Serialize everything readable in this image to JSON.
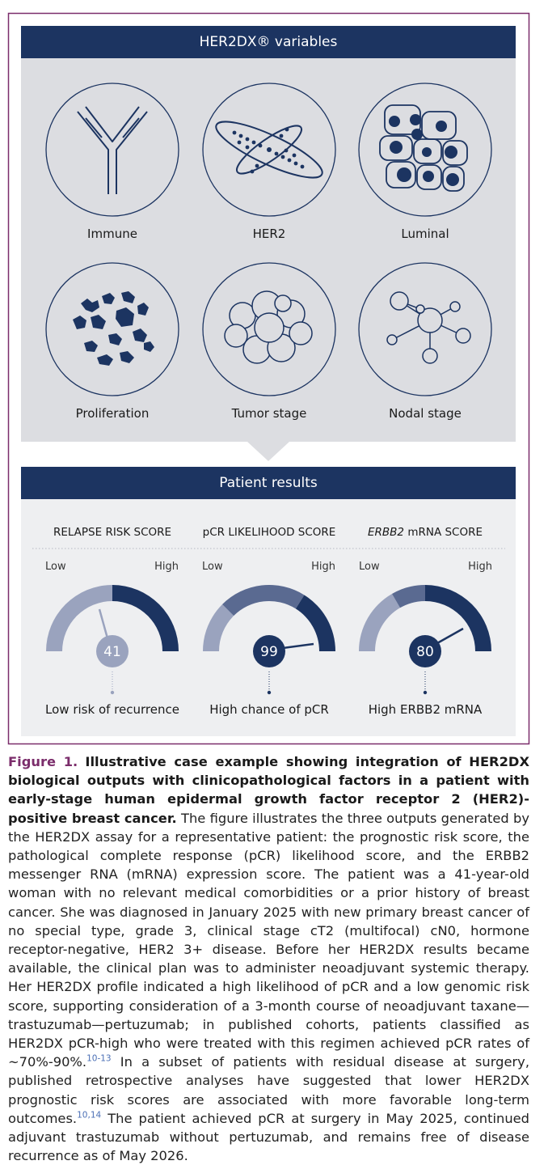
{
  "header": {
    "title": "HER2DX® variables"
  },
  "variables": [
    {
      "label": "Immune"
    },
    {
      "label": "HER2"
    },
    {
      "label": "Luminal"
    },
    {
      "label": "Proliferation"
    },
    {
      "label": "Tumor stage"
    },
    {
      "label": "Nodal stage"
    }
  ],
  "results": {
    "title": "Patient results",
    "scores": [
      {
        "name": "RELAPSE RISK SCORE",
        "low": "Low",
        "high": "High",
        "score": "41",
        "interpretation": "Low risk of recurrence"
      },
      {
        "name": "pCR LIKELIHOOD SCORE",
        "low": "Low",
        "high": "High",
        "score": "99",
        "interpretation": "High chance of pCR"
      },
      {
        "name_italic": "ERBB2",
        "name": "mRNA SCORE",
        "low": "Low",
        "high": "High",
        "score": "80",
        "interpretation": "High ERBB2 mRNA"
      }
    ]
  },
  "caption": {
    "label": "Figure 1.",
    "title": "Illustrative case example showing integration of HER2DX biological outputs with clinicopathological factors in a patient with early-stage human epidermal growth factor receptor 2 (HER2)-positive breast cancer.",
    "text_1": "The figure illustrates the three outputs generated by the HER2DX assay for a representative patient: the prognostic risk score, the pathological complete response (pCR) likelihood score, and the ERBB2 messenger RNA (mRNA) expression score. The patient was a 41-year-old woman with no relevant medical comorbidities or a prior history of breast cancer. She was diagnosed in January 2025 with new primary breast cancer of no special type, grade 3, clinical stage cT2 (multifocal) cN0, hormone receptor-negative, HER2 3+ disease. Before her HER2DX results became available, the clinical plan was to administer neoadjuvant systemic therapy. Her HER2DX profile indicated a high likelihood of pCR and a low genomic risk score, supporting consideration of a 3-month course of neoadjuvant taxane—trastuzumab—pertuzumab; in published cohorts, patients classified as HER2DX pCR-high who were treated with this regimen achieved pCR rates of ∼70%-90%.",
    "ref_1": "10-13",
    "text_2": "In a subset of patients with residual disease at surgery, published retrospective analyses have suggested that lower HER2DX prognostic risk scores are associated with more favorable long-term outcomes.",
    "ref_2": "10,14",
    "text_3": "The patient achieved pCR at surgery in May 2025, continued adjuvant trastuzumab without pertuzumab, and remains free of disease recurrence as of May 2026."
  }
}
